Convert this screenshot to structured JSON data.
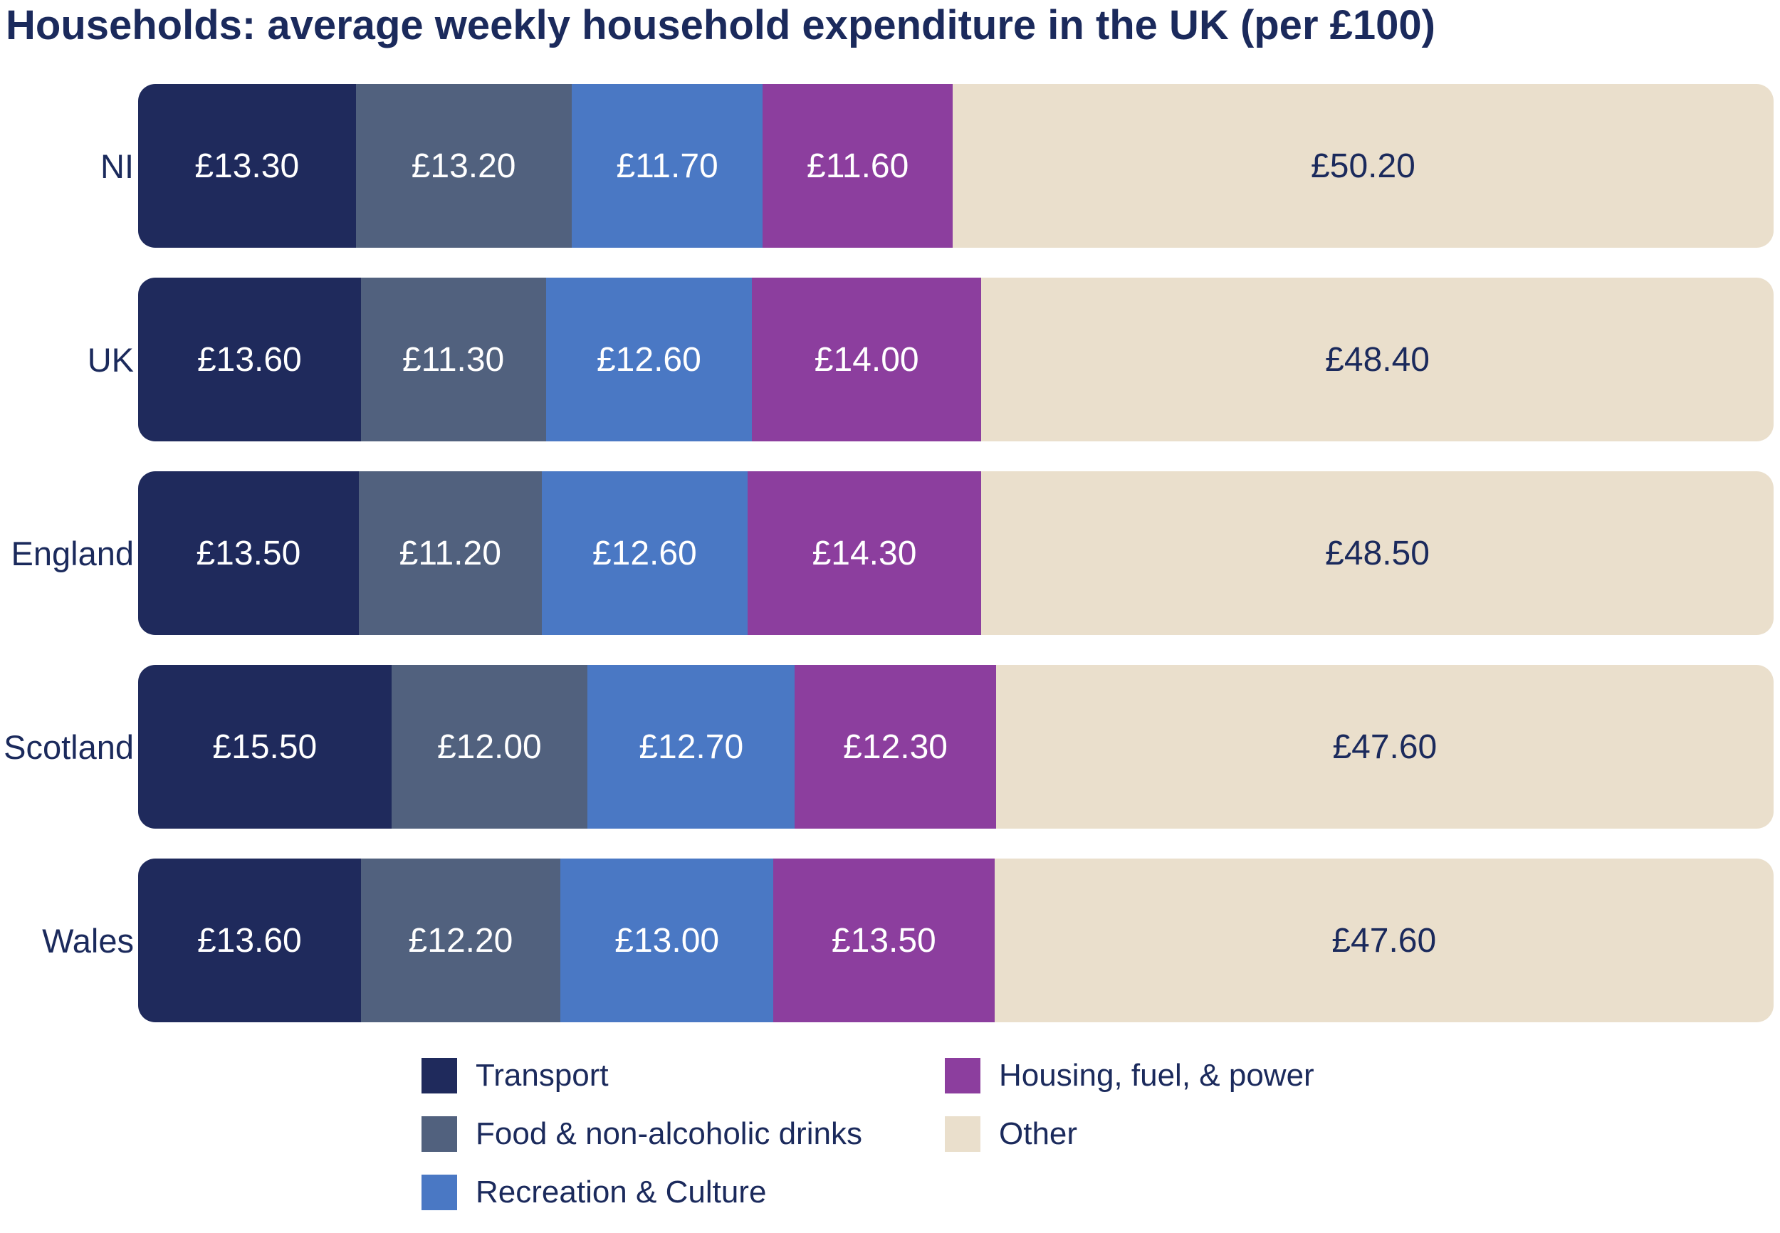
{
  "title": "Households: average weekly household expenditure in the UK (per £100)",
  "colors": {
    "title_text": "#1B2A5C",
    "background": "#FFFFFF",
    "transport": "#1F2A5C",
    "food": "#51617E",
    "recreation": "#4A78C4",
    "housing": "#8C3E9E",
    "other": "#EADFCC"
  },
  "chart_data": {
    "type": "bar",
    "orientation": "horizontal-stacked",
    "title": "Households: average weekly household expenditure in the UK (per £100)",
    "unit_prefix": "£",
    "total_per_bar": 100,
    "grid": false,
    "legend_position": "bottom",
    "categories": [
      "NI",
      "UK",
      "England",
      "Scotland",
      "Wales"
    ],
    "series": [
      {
        "name": "Transport",
        "color": "#1F2A5C",
        "text_color": "#FFFFFF",
        "values": [
          13.3,
          13.6,
          13.5,
          15.5,
          13.6
        ]
      },
      {
        "name": "Food & non-alcoholic drinks",
        "color": "#51617E",
        "text_color": "#FFFFFF",
        "values": [
          13.2,
          11.3,
          11.2,
          12.0,
          12.2
        ]
      },
      {
        "name": "Recreation & Culture",
        "color": "#4A78C4",
        "text_color": "#FFFFFF",
        "values": [
          11.7,
          12.6,
          12.6,
          12.7,
          13.0
        ]
      },
      {
        "name": "Housing, fuel, & power",
        "color": "#8C3E9E",
        "text_color": "#FFFFFF",
        "values": [
          11.6,
          14.0,
          14.3,
          12.3,
          13.5
        ]
      },
      {
        "name": "Other",
        "color": "#EADFCC",
        "text_color": "#1B2A5C",
        "values": [
          50.2,
          48.4,
          48.5,
          47.6,
          47.6
        ]
      }
    ],
    "legend_columns": [
      [
        0,
        1,
        2
      ],
      [
        3,
        4
      ]
    ]
  }
}
